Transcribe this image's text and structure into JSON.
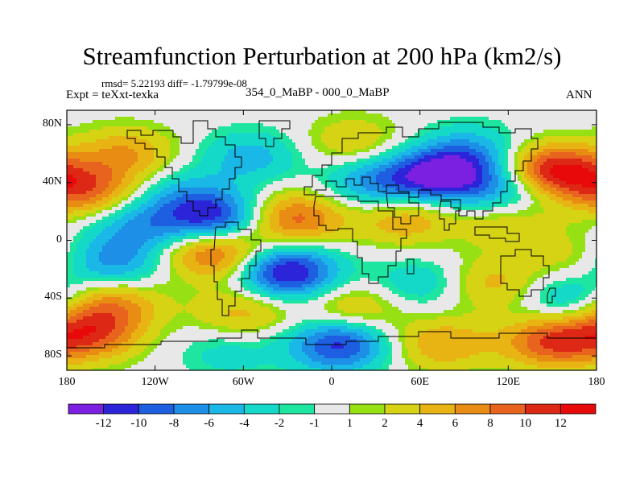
{
  "chart_data": {
    "type": "heatmap",
    "title": "Streamfunction Perturbation at 200 hPa (km2/s)",
    "stats": "rmsd= 5.22193 diff= -1.79799e-08",
    "left_label": "Expt = teXxt-texka",
    "center_label": "354_0_MaBP - 000_0_MaBP",
    "right_label": "ANN",
    "x_ticks": [
      "180",
      "120W",
      "60W",
      "0",
      "60E",
      "120E",
      "180"
    ],
    "y_ticks": [
      "80N",
      "40N",
      "0",
      "40S",
      "80S"
    ],
    "x_range": [
      -180,
      180
    ],
    "y_range": [
      -90,
      90
    ],
    "colorbar": {
      "labels": [
        "-12",
        "-10",
        "-8",
        "-6",
        "-4",
        "-2",
        "-1",
        "1",
        "2",
        "4",
        "6",
        "8",
        "10",
        "12"
      ],
      "colors": [
        "#7b1fe0",
        "#2c24d8",
        "#1d5fe0",
        "#1e8fe6",
        "#19b8e6",
        "#14d9c8",
        "#1ee6a0",
        "#e8e8e8",
        "#96e014",
        "#d6d214",
        "#e8b414",
        "#e88c14",
        "#e8641e",
        "#dc2814",
        "#e80a0a"
      ]
    },
    "anomalies": [
      {
        "lon": 75,
        "lat": 45,
        "value": -13
      },
      {
        "lon": 30,
        "lat": 40,
        "value": -7
      },
      {
        "lon": 120,
        "lat": 35,
        "value": -6
      },
      {
        "lon": 95,
        "lat": 62,
        "value": -5
      },
      {
        "lon": 150,
        "lat": 48,
        "value": 13
      },
      {
        "lon": 120,
        "lat": 12,
        "value": 4
      },
      {
        "lon": -168,
        "lat": 35,
        "value": 9
      },
      {
        "lon": -140,
        "lat": 60,
        "value": 6
      },
      {
        "lon": -100,
        "lat": 32,
        "value": -4
      },
      {
        "lon": -80,
        "lat": 15,
        "value": -11
      },
      {
        "lon": -130,
        "lat": 10,
        "value": -6
      },
      {
        "lon": -25,
        "lat": 15,
        "value": 9
      },
      {
        "lon": -55,
        "lat": 58,
        "value": -5
      },
      {
        "lon": 15,
        "lat": 68,
        "value": 4
      },
      {
        "lon": 50,
        "lat": 15,
        "value": 6
      },
      {
        "lon": -80,
        "lat": -8,
        "value": 10
      },
      {
        "lon": -150,
        "lat": -15,
        "value": -7
      },
      {
        "lon": -30,
        "lat": -22,
        "value": -13
      },
      {
        "lon": 60,
        "lat": -30,
        "value": -4
      },
      {
        "lon": 15,
        "lat": -48,
        "value": 5
      },
      {
        "lon": 110,
        "lat": -30,
        "value": 5
      },
      {
        "lon": 165,
        "lat": -12,
        "value": 3
      },
      {
        "lon": 160,
        "lat": -40,
        "value": -5
      },
      {
        "lon": -150,
        "lat": -45,
        "value": 7
      },
      {
        "lon": -60,
        "lat": -50,
        "value": 5
      },
      {
        "lon": -165,
        "lat": -65,
        "value": 9
      },
      {
        "lon": 5,
        "lat": -72,
        "value": -11
      },
      {
        "lon": 150,
        "lat": -70,
        "value": 10
      },
      {
        "lon": 75,
        "lat": -72,
        "value": 6
      },
      {
        "lon": -70,
        "lat": -78,
        "value": -3
      }
    ]
  }
}
